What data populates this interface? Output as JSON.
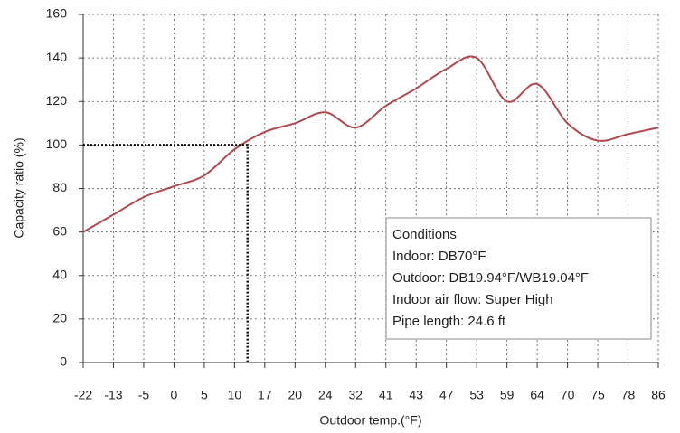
{
  "chart_data": {
    "type": "line",
    "x_label": "Outdoor temp.(°F)",
    "y_label": "Capacity ratio (%)",
    "categories": [
      "-22",
      "-13",
      "-5",
      "0",
      "5",
      "10",
      "17",
      "20",
      "24",
      "32",
      "41",
      "43",
      "47",
      "53",
      "59",
      "64",
      "70",
      "75",
      "78",
      "86"
    ],
    "series": [
      {
        "name": "Capacity ratio",
        "color": "#b0474f",
        "values": [
          60,
          68,
          76,
          81,
          86,
          98,
          106,
          110,
          115,
          108,
          118,
          126,
          135,
          140,
          120,
          128,
          110,
          102,
          105,
          108
        ]
      }
    ],
    "ylim": [
      0,
      160
    ],
    "yticks": [
      0,
      20,
      40,
      60,
      80,
      100,
      120,
      140,
      160
    ],
    "grid": true,
    "reference_y": 100,
    "annotation": {
      "lines": [
        "Conditions",
        "Indoor: DB70°F",
        "Outdoor: DB19.94°F/WB19.04°F",
        "Indoor air flow: Super High",
        "Pipe length: 24.6 ft"
      ]
    }
  }
}
